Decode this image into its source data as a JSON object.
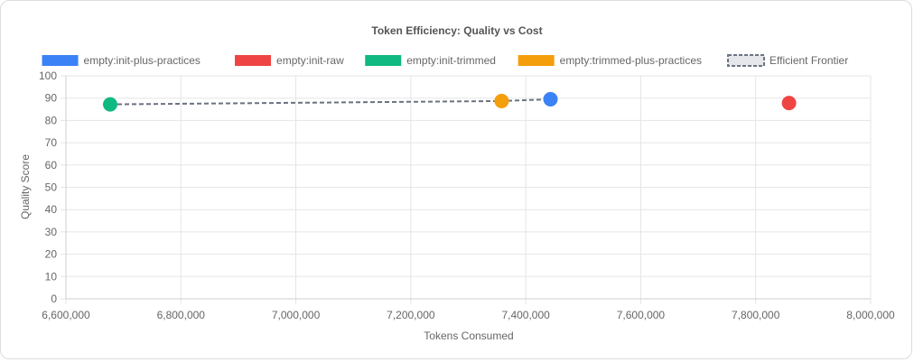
{
  "chart_data": {
    "type": "scatter",
    "title": "Token Efficiency: Quality vs Cost",
    "xlabel": "Tokens Consumed",
    "ylabel": "Quality Score",
    "xlim": [
      6600000,
      8000000
    ],
    "ylim": [
      0,
      100
    ],
    "x_ticks": [
      "6,600,000",
      "6,800,000",
      "7,000,000",
      "7,200,000",
      "7,400,000",
      "7,600,000",
      "7,800,000",
      "8,000,000"
    ],
    "y_ticks": [
      "0",
      "10",
      "20",
      "30",
      "40",
      "50",
      "60",
      "70",
      "80",
      "90",
      "100"
    ],
    "grid": true,
    "legend_position": "top",
    "series": [
      {
        "name": "empty:init-plus-practices",
        "color": "#3b82f6",
        "points": [
          {
            "x": 7443000,
            "y": 89.5
          }
        ]
      },
      {
        "name": "empty:init-raw",
        "color": "#ef4444",
        "points": [
          {
            "x": 7858000,
            "y": 87.8
          }
        ]
      },
      {
        "name": "empty:init-trimmed",
        "color": "#10b981",
        "points": [
          {
            "x": 6677000,
            "y": 87.2
          }
        ]
      },
      {
        "name": "empty:trimmed-plus-practices",
        "color": "#f59e0b",
        "points": [
          {
            "x": 7358000,
            "y": 88.7
          }
        ]
      }
    ],
    "frontier": {
      "name": "Efficient Frontier",
      "color": "#6b7280",
      "points": [
        {
          "x": 6677000,
          "y": 87.2
        },
        {
          "x": 7358000,
          "y": 88.7
        },
        {
          "x": 7443000,
          "y": 89.5
        }
      ]
    }
  }
}
